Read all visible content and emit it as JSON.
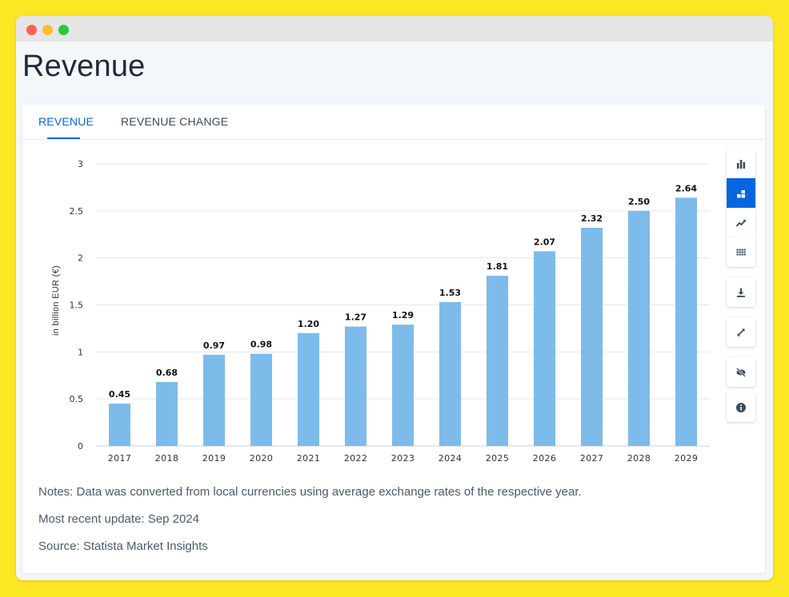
{
  "window": {
    "title": "Revenue"
  },
  "tabs": [
    {
      "label": "REVENUE",
      "active": true
    },
    {
      "label": "REVENUE CHANGE",
      "active": false
    }
  ],
  "toolbar": {
    "buttons": [
      {
        "icon": "bar-chart-icon",
        "selected": false
      },
      {
        "icon": "stacked-bar-icon",
        "selected": true
      },
      {
        "icon": "trend-line-icon",
        "selected": false
      },
      {
        "icon": "table-grid-icon",
        "selected": false
      },
      {
        "icon": "download-icon",
        "selected": false
      },
      {
        "icon": "expand-icon",
        "selected": false
      },
      {
        "icon": "hide-eye-icon",
        "selected": false
      },
      {
        "icon": "info-icon",
        "selected": false
      }
    ]
  },
  "notes": {
    "note": "Notes: Data was converted from local currencies using average exchange rates of the respective year.",
    "update": "Most recent update: Sep 2024",
    "source": "Source: Statista Market Insights"
  },
  "colors": {
    "bar": "#7dbbea",
    "accent": "#0666e1",
    "grid": "#e3e7ec"
  },
  "chart_data": {
    "type": "bar",
    "categories": [
      "2017",
      "2018",
      "2019",
      "2020",
      "2021",
      "2022",
      "2023",
      "2024",
      "2025",
      "2026",
      "2027",
      "2028",
      "2029"
    ],
    "values": [
      0.45,
      0.68,
      0.97,
      0.98,
      1.2,
      1.27,
      1.29,
      1.53,
      1.81,
      2.07,
      2.32,
      2.5,
      2.64
    ],
    "value_labels": [
      "0.45",
      "0.68",
      "0.97",
      "0.98",
      "1.20",
      "1.27",
      "1.29",
      "1.53",
      "1.81",
      "2.07",
      "2.32",
      "2.50",
      "2.64"
    ],
    "ylabel": "in billion EUR (€)",
    "ylim": [
      0,
      3
    ],
    "yticks": [
      0,
      0.5,
      1,
      1.5,
      2,
      2.5,
      3
    ],
    "ytick_labels": [
      "0",
      "0.5",
      "1",
      "1.5",
      "2",
      "2.5",
      "3"
    ],
    "grid": true
  }
}
